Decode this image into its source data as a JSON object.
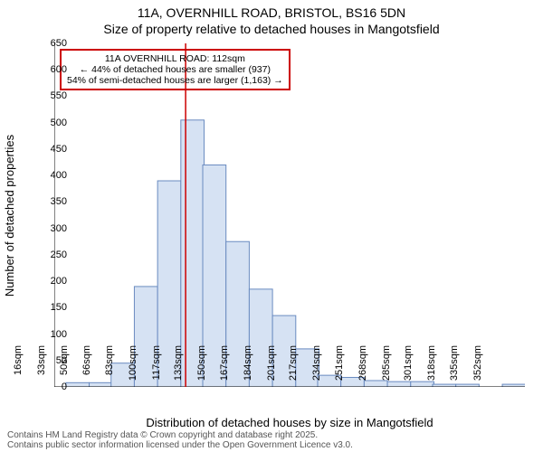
{
  "chart": {
    "type": "histogram",
    "title_main": "11A, OVERNHILL ROAD, BRISTOL, BS16 5DN",
    "title_sub": "Size of property relative to detached houses in Mangotsfield",
    "title_fontsize": 14,
    "y_axis_label": "Number of detached properties",
    "x_axis_label": "Distribution of detached houses by size in Mangotsfield",
    "axis_label_fontsize": 13,
    "tick_fontsize": 11,
    "background_color": "#ffffff",
    "bar_fill": "#d6e2f3",
    "bar_stroke": "#6a8bc0",
    "ref_line_color": "#cc0000",
    "annot_border_color": "#cc0000",
    "ref_line_x": 112,
    "xlim": [
      16,
      360
    ],
    "ylim": [
      0,
      650
    ],
    "y_ticks": [
      0,
      50,
      100,
      150,
      200,
      250,
      300,
      350,
      400,
      450,
      500,
      550,
      600,
      650
    ],
    "x_ticks": [
      16,
      33,
      50,
      66,
      83,
      100,
      117,
      133,
      150,
      167,
      184,
      201,
      217,
      234,
      251,
      268,
      285,
      301,
      318,
      335,
      352
    ],
    "x_tick_suffix": "sqm",
    "categories": [
      16,
      33,
      50,
      66,
      83,
      100,
      117,
      133,
      150,
      167,
      184,
      201,
      217,
      234,
      251,
      268,
      285,
      301,
      318,
      335,
      352
    ],
    "values": [
      0,
      8,
      8,
      45,
      190,
      390,
      505,
      420,
      275,
      185,
      135,
      72,
      22,
      18,
      12,
      10,
      10,
      5,
      5,
      0,
      5
    ],
    "annotation": {
      "line1": "11A OVERNHILL ROAD: 112sqm",
      "line2": "← 44% of detached houses are smaller (937)",
      "line3": "54% of semi-detached houses are larger (1,163) →"
    },
    "footer_line1": "Contains HM Land Registry data © Crown copyright and database right 2025.",
    "footer_line2": "Contains public sector information licensed under the Open Government Licence v3.0."
  }
}
